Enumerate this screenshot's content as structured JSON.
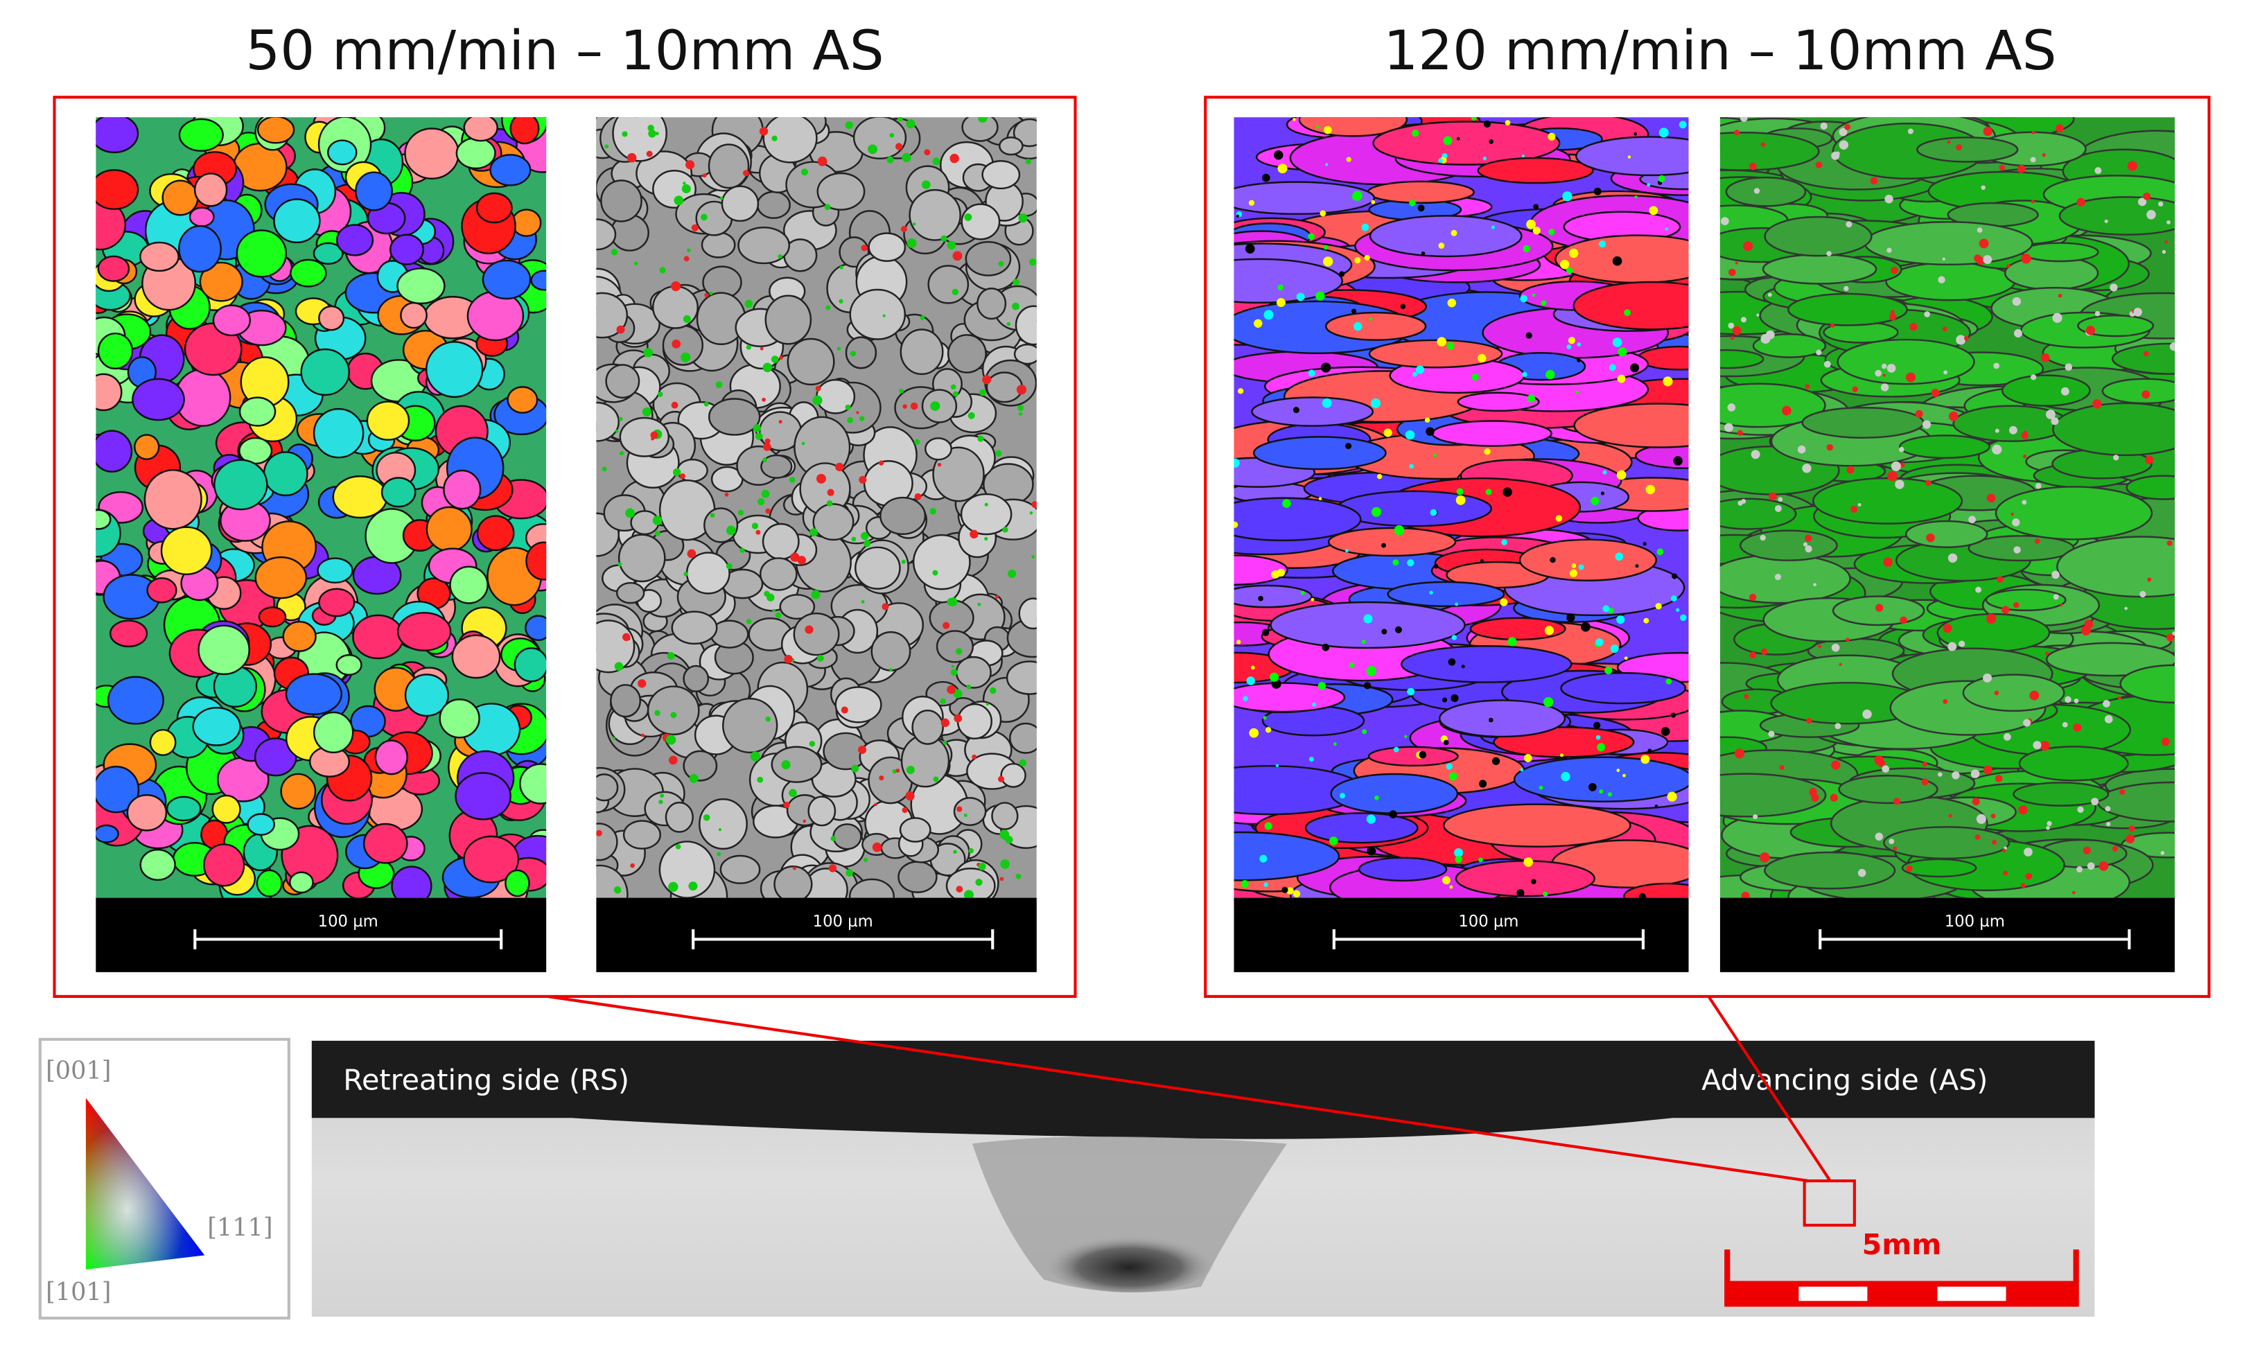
{
  "panels": [
    {
      "title": "50 mm/min – 10mm AS",
      "maps": [
        {
          "scale_bar": "100 µm"
        },
        {
          "scale_bar": "100 µm"
        }
      ]
    },
    {
      "title": "120 mm/min – 10mm AS",
      "maps": [
        {
          "scale_bar": "100 µm"
        },
        {
          "scale_bar": "100 µm"
        }
      ]
    }
  ],
  "macrograph": {
    "left_label": "Retreating side (RS)",
    "right_label": "Advancing side (AS)",
    "scale_bar": "5mm"
  },
  "legend": {
    "top": "[001]",
    "right": "[111]",
    "bottom": "[101]"
  }
}
